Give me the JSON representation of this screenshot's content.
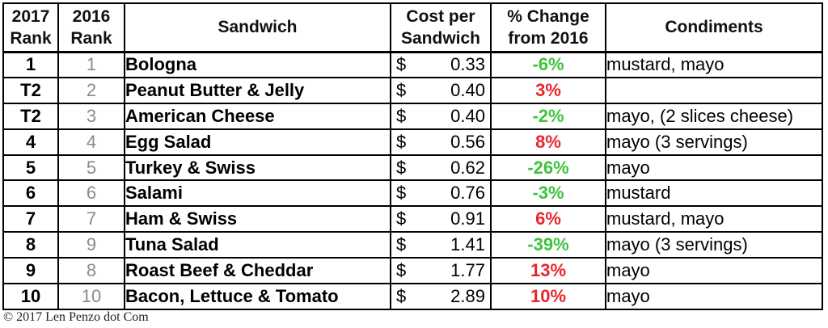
{
  "headers": {
    "rank_2017": [
      "2017",
      "Rank"
    ],
    "rank_2016": [
      "2016",
      "Rank"
    ],
    "sandwich": "Sandwich",
    "cost": [
      "Cost per",
      "Sandwich"
    ],
    "change": [
      "% Change",
      "from 2016"
    ],
    "condiments": "Condiments"
  },
  "rows": [
    {
      "rank_2017": "1",
      "rank_2016": "1",
      "sandwich": "Bologna",
      "currency": "$",
      "cost": "0.33",
      "change": "-6%",
      "change_dir": "neg",
      "condiments": "mustard, mayo"
    },
    {
      "rank_2017": "T2",
      "rank_2016": "2",
      "sandwich": "Peanut Butter & Jelly",
      "currency": "$",
      "cost": "0.40",
      "change": "3%",
      "change_dir": "pos",
      "condiments": ""
    },
    {
      "rank_2017": "T2",
      "rank_2016": "3",
      "sandwich": "American Cheese",
      "currency": "$",
      "cost": "0.40",
      "change": "-2%",
      "change_dir": "neg",
      "condiments": "mayo, (2 slices cheese)"
    },
    {
      "rank_2017": "4",
      "rank_2016": "4",
      "sandwich": "Egg Salad",
      "currency": "$",
      "cost": "0.56",
      "change": "8%",
      "change_dir": "pos",
      "condiments": "mayo (3 servings)"
    },
    {
      "rank_2017": "5",
      "rank_2016": "5",
      "sandwich": "Turkey & Swiss",
      "currency": "$",
      "cost": "0.62",
      "change": "-26%",
      "change_dir": "neg",
      "condiments": "mayo"
    },
    {
      "rank_2017": "6",
      "rank_2016": "6",
      "sandwich": "Salami",
      "currency": "$",
      "cost": "0.76",
      "change": "-3%",
      "change_dir": "neg",
      "condiments": "mustard"
    },
    {
      "rank_2017": "7",
      "rank_2016": "7",
      "sandwich": "Ham & Swiss",
      "currency": "$",
      "cost": "0.91",
      "change": "6%",
      "change_dir": "pos",
      "condiments": "mustard, mayo"
    },
    {
      "rank_2017": "8",
      "rank_2016": "9",
      "sandwich": "Tuna Salad",
      "currency": "$",
      "cost": "1.41",
      "change": "-39%",
      "change_dir": "neg",
      "condiments": "mayo (3 servings)"
    },
    {
      "rank_2017": "9",
      "rank_2016": "8",
      "sandwich": "Roast Beef & Cheddar",
      "currency": "$",
      "cost": "1.77",
      "change": "13%",
      "change_dir": "pos",
      "condiments": "mayo"
    },
    {
      "rank_2017": "10",
      "rank_2016": "10",
      "sandwich": "Bacon, Lettuce & Tomato",
      "currency": "$",
      "cost": "2.89",
      "change": "10%",
      "change_dir": "pos",
      "condiments": "mayo"
    }
  ],
  "colors": {
    "positive_change": "#e8262c",
    "negative_change": "#3cc43c",
    "rank_2016_text": "#8a8a8a"
  },
  "credit": "© 2017 Len Penzo dot Com"
}
